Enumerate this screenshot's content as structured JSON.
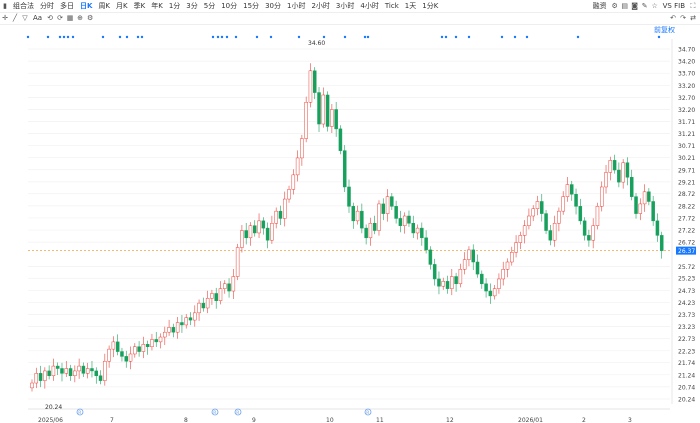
{
  "toolbar": {
    "period_items": [
      "组合法",
      "分时",
      "多日",
      "日K",
      "周K",
      "月K",
      "季K",
      "年K",
      "1分",
      "3分",
      "5分",
      "10分",
      "15分",
      "30分",
      "1小时",
      "2小时",
      "3小时",
      "4小时",
      "Tick",
      "1天",
      "1分K"
    ],
    "active_index": 3,
    "right_label": "融资",
    "right_text": "VS FIB"
  },
  "toolbar2": {
    "tools": [
      "crosshair-icon",
      "trendline-icon",
      "brush-icon",
      "text-icon",
      "undo-icon",
      "redo-icon",
      "shapes-icon",
      "zoom-icon",
      "settings-icon"
    ],
    "right_link": "前复权",
    "text_tool_label": "Aa"
  },
  "chart_data": {
    "type": "candlestick",
    "y_ticks": [
      "34.70",
      "34.20",
      "33.70",
      "33.20",
      "32.70",
      "32.20",
      "31.71",
      "31.21",
      "30.71",
      "30.21",
      "29.71",
      "29.21",
      "28.72",
      "28.22",
      "27.72",
      "27.22",
      "26.72",
      "26.37",
      "25.72",
      "25.23",
      "24.73",
      "24.23",
      "23.73",
      "23.23",
      "22.73",
      "22.23",
      "21.74",
      "21.24",
      "20.74",
      "20.24"
    ],
    "ylim": [
      20.24,
      34.7
    ],
    "x_ticks": [
      "2025/06",
      "7",
      "8",
      "9",
      "10",
      "11",
      "12",
      "2026/01",
      "2",
      "3"
    ],
    "current_price": "26.37",
    "high_label": "34.60",
    "low_label": "20.24",
    "event_markers": [
      "R",
      "R",
      "R",
      "R"
    ],
    "closes": [
      20.9,
      21.3,
      21.0,
      21.4,
      21.2,
      21.6,
      21.5,
      21.3,
      21.5,
      21.2,
      21.4,
      21.6,
      21.3,
      21.5,
      21.4,
      21.2,
      21.0,
      21.8,
      22.3,
      22.6,
      22.2,
      22.0,
      21.8,
      22.1,
      22.4,
      22.2,
      22.5,
      22.4,
      22.7,
      22.6,
      22.8,
      23.0,
      23.2,
      23.0,
      23.4,
      23.3,
      23.6,
      23.5,
      23.8,
      24.2,
      24.0,
      24.4,
      24.6,
      24.3,
      24.8,
      25.0,
      24.7,
      25.3,
      26.5,
      27.2,
      26.9,
      27.4,
      27.1,
      27.6,
      27.3,
      26.8,
      27.5,
      28.0,
      27.7,
      28.5,
      28.9,
      29.5,
      30.2,
      31.0,
      32.5,
      33.8,
      32.9,
      31.6,
      32.8,
      31.5,
      32.2,
      31.4,
      30.5,
      29.0,
      28.2,
      27.6,
      28.0,
      27.3,
      26.9,
      27.5,
      27.2,
      28.3,
      27.9,
      28.6,
      28.2,
      27.7,
      27.4,
      27.8,
      27.5,
      27.1,
      27.3,
      26.9,
      26.4,
      25.8,
      25.2,
      24.9,
      25.1,
      24.8,
      25.3,
      25.0,
      25.6,
      26.0,
      26.4,
      25.9,
      25.4,
      25.0,
      24.7,
      24.5,
      24.8,
      25.2,
      25.6,
      25.9,
      26.3,
      26.7,
      27.0,
      27.4,
      27.8,
      28.1,
      28.4,
      27.9,
      27.2,
      26.8,
      27.5,
      28.0,
      28.6,
      29.1,
      28.7,
      28.2,
      27.6,
      27.0,
      26.8,
      27.4,
      28.2,
      29.0,
      29.6,
      30.1,
      29.7,
      29.2,
      30.0,
      29.4,
      28.6,
      27.9,
      28.3,
      28.8,
      28.4,
      27.6,
      27.0,
      26.37
    ]
  }
}
